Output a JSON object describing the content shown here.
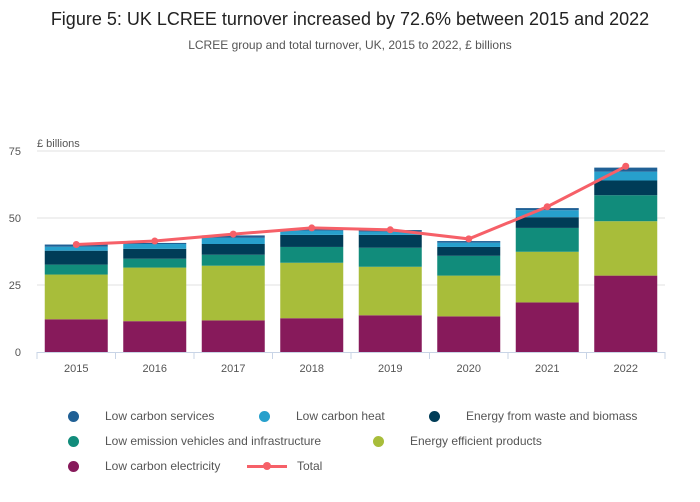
{
  "chart_data": {
    "type": "bar",
    "stacked": true,
    "title": "Figure 5: UK LCREE turnover increased by 72.6% between 2015 and 2022",
    "subtitle": "LCREE group and total turnover, UK, 2015 to 2022, £ billions",
    "ylabel": "£ billions",
    "xlabel": "",
    "ylim": [
      0,
      75
    ],
    "yticks": [
      0,
      25,
      50,
      75
    ],
    "grid": true,
    "legend_position": "bottom",
    "categories": [
      "2015",
      "2016",
      "2017",
      "2018",
      "2019",
      "2020",
      "2021",
      "2022"
    ],
    "series": [
      {
        "name": "Low carbon electricity",
        "color": "#871a5b",
        "values": [
          12.2,
          11.5,
          11.8,
          12.6,
          13.7,
          13.3,
          18.5,
          28.5
        ]
      },
      {
        "name": "Energy efficient products",
        "color": "#a8bd3a",
        "values": [
          16.7,
          20.0,
          20.4,
          20.7,
          18.1,
          15.2,
          18.9,
          20.3
        ]
      },
      {
        "name": "Low emission vehicles and infrastructure",
        "color": "#118c7b",
        "values": [
          3.7,
          3.3,
          4.1,
          5.9,
          7.1,
          7.4,
          8.9,
          9.7
        ]
      },
      {
        "name": "Energy from waste and biomass",
        "color": "#003c57",
        "values": [
          5.2,
          3.7,
          4.0,
          4.5,
          4.8,
          3.3,
          4.0,
          5.5
        ]
      },
      {
        "name": "Low carbon heat",
        "color": "#27a0cc",
        "values": [
          1.5,
          1.8,
          2.3,
          1.6,
          1.2,
          1.6,
          2.6,
          3.3
        ]
      },
      {
        "name": "Low carbon services",
        "color": "#206095",
        "values": [
          0.8,
          0.4,
          0.9,
          0.6,
          0.6,
          0.6,
          0.8,
          1.5
        ]
      }
    ],
    "total": {
      "name": "Total",
      "type": "line",
      "color": "#f66068",
      "values": [
        40.1,
        41.4,
        44.0,
        46.3,
        45.6,
        42.2,
        54.2,
        69.3
      ]
    }
  }
}
